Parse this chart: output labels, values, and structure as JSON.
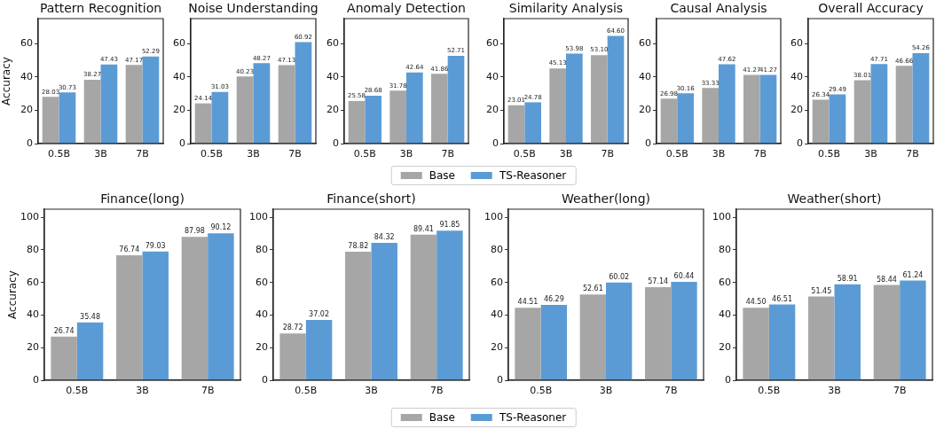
{
  "chart_data": [
    {
      "type": "bar",
      "title": "Pattern Recognition",
      "ylabel": "Accuracy",
      "categories": [
        "0.5B",
        "3B",
        "7B"
      ],
      "series": [
        {
          "name": "Base",
          "color": "#a6a6a6",
          "values": [
            28.03,
            38.27,
            47.17
          ]
        },
        {
          "name": "TS-Reasoner",
          "color": "#5b9bd5",
          "values": [
            30.73,
            47.43,
            52.29
          ]
        }
      ],
      "ylim": [
        0,
        75
      ],
      "yticks": [
        0,
        20,
        40,
        60
      ],
      "data_labels": true,
      "legend": "bottom"
    },
    {
      "type": "bar",
      "title": "Noise Understanding",
      "categories": [
        "0.5B",
        "3B",
        "7B"
      ],
      "series": [
        {
          "color": "#a6a6a6",
          "values": [
            24.14,
            40.23,
            47.13
          ]
        },
        {
          "color": "#5b9bd5",
          "values": [
            31.03,
            48.27,
            60.92
          ]
        }
      ],
      "ylim": [
        0,
        75
      ],
      "yticks": [
        0,
        20,
        40,
        60
      ],
      "data_labels": true
    },
    {
      "type": "bar",
      "title": "Anomaly Detection",
      "categories": [
        "0.5B",
        "3B",
        "7B"
      ],
      "series": [
        {
          "color": "#a6a6a6",
          "values": [
            25.58,
            31.78,
            41.86
          ]
        },
        {
          "color": "#5b9bd5",
          "values": [
            28.68,
            42.64,
            52.71
          ]
        }
      ],
      "ylim": [
        0,
        75
      ],
      "yticks": [
        0,
        20,
        40,
        60
      ],
      "data_labels": true
    },
    {
      "type": "bar",
      "title": "Similarity Analysis",
      "categories": [
        "0.5B",
        "3B",
        "7B"
      ],
      "series": [
        {
          "color": "#a6a6a6",
          "values": [
            23.01,
            45.13,
            53.1
          ],
          "value_labels": [
            "23.01",
            "45.13",
            "53.10"
          ]
        },
        {
          "color": "#5b9bd5",
          "values": [
            24.78,
            53.98,
            64.6
          ],
          "value_labels": [
            "24.78",
            "53.98",
            "64.60"
          ]
        }
      ],
      "ylim": [
        0,
        75
      ],
      "yticks": [
        0,
        20,
        40,
        60
      ]
    },
    {
      "type": "bar",
      "title": "Causal Analysis",
      "categories": [
        "0.5B",
        "3B",
        "7B"
      ],
      "series": [
        {
          "color": "#a6a6a6",
          "values": [
            26.98,
            33.33,
            41.27
          ]
        },
        {
          "color": "#5b9bd5",
          "values": [
            30.16,
            47.62,
            41.27
          ]
        }
      ],
      "ylim": [
        0,
        75
      ],
      "yticks": [
        0,
        20,
        40,
        60
      ],
      "data_labels": true
    },
    {
      "type": "bar",
      "title": "Overall Accuracy",
      "categories": [
        "0.5B",
        "3B",
        "7B"
      ],
      "series": [
        {
          "color": "#a6a6a6",
          "values": [
            26.34,
            38.01,
            46.66
          ]
        },
        {
          "color": "#5b9bd5",
          "values": [
            29.49,
            47.71,
            54.26
          ]
        }
      ],
      "ylim": [
        0,
        75
      ],
      "yticks": [
        0,
        20,
        40,
        60
      ],
      "data_labels": true
    },
    {
      "type": "bar",
      "title": "Finance(long)",
      "ylabel": "Accuracy",
      "categories": [
        "0.5B",
        "3B",
        "7B"
      ],
      "series": [
        {
          "name": "Base",
          "color": "#a6a6a6",
          "values": [
            26.74,
            76.74,
            87.98
          ]
        },
        {
          "name": "TS-Reasoner",
          "color": "#5b9bd5",
          "values": [
            35.48,
            79.03,
            90.12
          ]
        }
      ],
      "ylim": [
        0,
        105
      ],
      "yticks": [
        0,
        20,
        40,
        60,
        80,
        100
      ],
      "data_labels": true,
      "legend": "bottom"
    },
    {
      "type": "bar",
      "title": "Finance(short)",
      "categories": [
        "0.5B",
        "3B",
        "7B"
      ],
      "series": [
        {
          "color": "#a6a6a6",
          "values": [
            28.72,
            78.82,
            89.41
          ]
        },
        {
          "color": "#5b9bd5",
          "values": [
            37.02,
            84.32,
            91.85
          ]
        }
      ],
      "ylim": [
        0,
        105
      ],
      "yticks": [
        0,
        20,
        40,
        60,
        80,
        100
      ],
      "data_labels": true
    },
    {
      "type": "bar",
      "title": "Weather(long)",
      "categories": [
        "0.5B",
        "3B",
        "7B"
      ],
      "series": [
        {
          "color": "#a6a6a6",
          "values": [
            44.51,
            52.61,
            57.14
          ]
        },
        {
          "color": "#5b9bd5",
          "values": [
            46.29,
            60.02,
            60.44
          ]
        }
      ],
      "ylim": [
        0,
        105
      ],
      "yticks": [
        0,
        20,
        40,
        60,
        80,
        100
      ],
      "data_labels": true
    },
    {
      "type": "bar",
      "title": "Weather(short)",
      "categories": [
        "0.5B",
        "3B",
        "7B"
      ],
      "series": [
        {
          "color": "#a6a6a6",
          "values": [
            44.5,
            51.45,
            58.44
          ],
          "value_labels": [
            "44.50",
            "51.45",
            "58.44"
          ]
        },
        {
          "color": "#5b9bd5",
          "values": [
            46.51,
            58.91,
            61.24
          ],
          "value_labels": [
            "46.51",
            "58.91",
            "61.24"
          ]
        }
      ],
      "ylim": [
        0,
        105
      ],
      "yticks": [
        0,
        20,
        40,
        60,
        80,
        100
      ]
    }
  ]
}
